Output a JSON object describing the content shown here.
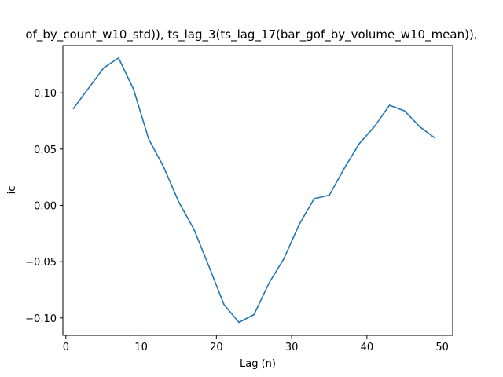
{
  "chart_data": {
    "type": "line",
    "title": "of_by_count_w10_std)), ts_lag_3(ts_lag_17(bar_gof_by_volume_w10_mean)),",
    "xlabel": "Lag (n)",
    "ylabel": "ic",
    "xlim": [
      -0.4,
      51.4
    ],
    "ylim": [
      -0.1155,
      0.142
    ],
    "xticks": [
      0,
      10,
      20,
      30,
      40,
      50
    ],
    "xtick_labels": [
      "0",
      "10",
      "20",
      "30",
      "40",
      "50"
    ],
    "yticks": [
      -0.1,
      -0.05,
      0.0,
      0.05,
      0.1
    ],
    "ytick_labels": [
      "−0.10",
      "−0.05",
      "0.00",
      "0.05",
      "0.10"
    ],
    "grid": false,
    "series": [
      {
        "color": "#1f77b4",
        "x": [
          1,
          3,
          5,
          7,
          9,
          11,
          13,
          15,
          17,
          19,
          21,
          23,
          25,
          27,
          29,
          31,
          33,
          35,
          37,
          39,
          41,
          43,
          45,
          47,
          49
        ],
        "y": [
          0.086,
          0.104,
          0.122,
          0.131,
          0.103,
          0.059,
          0.034,
          0.003,
          -0.021,
          -0.054,
          -0.088,
          -0.104,
          -0.097,
          -0.069,
          -0.047,
          -0.017,
          0.006,
          0.009,
          0.033,
          0.055,
          0.07,
          0.089,
          0.084,
          0.07,
          0.06
        ]
      }
    ]
  }
}
